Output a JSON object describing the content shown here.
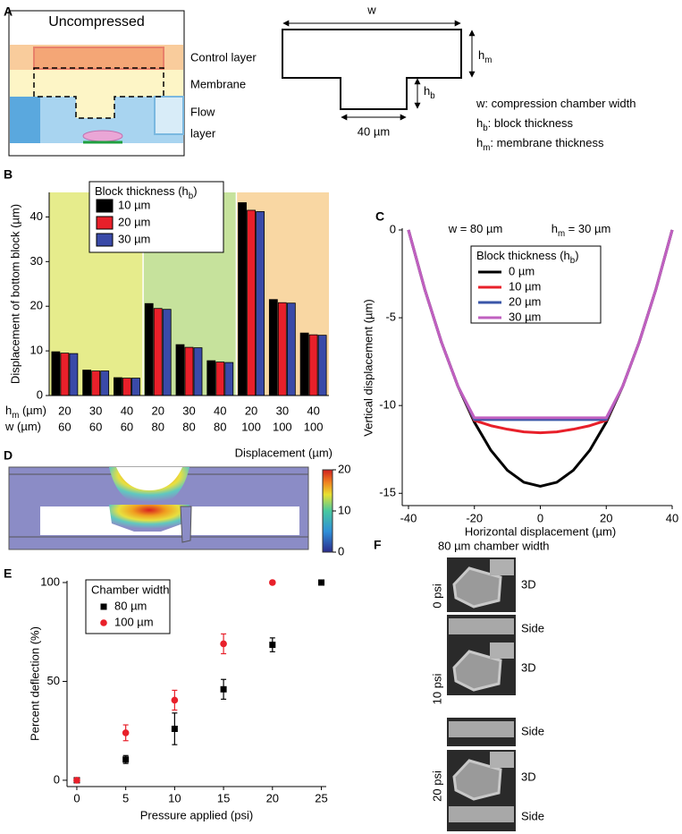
{
  "panel_letters": [
    "A",
    "B",
    "C",
    "D",
    "E",
    "F"
  ],
  "diagram_a": {
    "title": "Uncompressed",
    "layer_labels": [
      "Control layer",
      "Membrane",
      "Flow",
      "layer"
    ],
    "width_label": "w",
    "membrane_label": {
      "symbol": "h",
      "sub": "m"
    },
    "block_label": {
      "symbol": "h",
      "sub": "b"
    },
    "block_width_label": "40 µm",
    "key": [
      {
        "text": "w: compression chamber width"
      },
      {
        "symbol": "h",
        "sub": "b",
        "text": ": block thickness"
      },
      {
        "symbol": "h",
        "sub": "m",
        "text": ": membrane thickness"
      }
    ]
  },
  "chart_data": [
    {
      "type": "bar",
      "y_label": "Displacement of bottom block (µm)",
      "category_rows": [
        {
          "symbol": "h",
          "sub": "m",
          "text": " (µm)",
          "labels": [
            "20",
            "30",
            "40",
            "20",
            "30",
            "40",
            "20",
            "30",
            "40"
          ]
        },
        {
          "text": "w (µm)",
          "labels": [
            "60",
            "60",
            "60",
            "80",
            "80",
            "80",
            "100",
            "100",
            "100"
          ]
        }
      ],
      "legend_title": {
        "pre": "Block thickness (",
        "symbol": "h",
        "sub": "b",
        "text": ")"
      },
      "series": [
        {
          "name": "10 µm",
          "color": "#000000",
          "values": [
            9.8,
            5.7,
            4.0,
            20.6,
            11.4,
            7.8,
            43.2,
            21.5,
            14.0
          ]
        },
        {
          "name": "20 µm",
          "color": "#e8202a",
          "values": [
            9.5,
            5.5,
            3.9,
            19.5,
            10.8,
            7.5,
            41.5,
            20.8,
            13.6
          ]
        },
        {
          "name": "30 µm",
          "color": "#3a4aa8",
          "values": [
            9.4,
            5.5,
            3.9,
            19.3,
            10.7,
            7.4,
            41.2,
            20.7,
            13.5
          ]
        }
      ],
      "ylim": [
        0,
        45.5
      ],
      "yticks": [
        0,
        10,
        20,
        30,
        40
      ],
      "background_colors": [
        "#e6ec8c",
        "#c6e29c",
        "#f9d7a3"
      ]
    },
    {
      "type": "line",
      "title": [
        {
          "text": "w = 80 µm"
        },
        {
          "symbol": "h",
          "sub": "m",
          "text": " = 30 µm"
        }
      ],
      "x_label": "Horizontal displacement (µm)",
      "y_label": "Vertical displacement (µm)",
      "legend_title": {
        "pre": "Block thickness (",
        "symbol": "h",
        "sub": "b",
        "text": ")"
      },
      "x": [
        -40,
        -35,
        -30,
        -25,
        -20,
        -15,
        -10,
        -5,
        0,
        5,
        10,
        15,
        20,
        25,
        30,
        35,
        40
      ],
      "series": [
        {
          "name": "0 µm",
          "color": "#000000",
          "values": [
            0,
            -3.42,
            -6.39,
            -8.9,
            -10.95,
            -12.55,
            -13.69,
            -14.37,
            -14.6,
            -14.37,
            -13.69,
            -12.55,
            -10.95,
            -8.9,
            -6.39,
            -3.42,
            0
          ]
        },
        {
          "name": "10 µm",
          "color": "#e8202a",
          "values": [
            0,
            -3.42,
            -6.39,
            -8.9,
            -10.85,
            -11.15,
            -11.35,
            -11.5,
            -11.55,
            -11.5,
            -11.35,
            -11.15,
            -10.85,
            -8.9,
            -6.39,
            -3.42,
            0
          ]
        },
        {
          "name": "20 µm",
          "color": "#3a56a8",
          "values": [
            0,
            -3.42,
            -6.39,
            -8.9,
            -10.8,
            -10.8,
            -10.8,
            -10.8,
            -10.8,
            -10.8,
            -10.8,
            -10.8,
            -10.8,
            -8.9,
            -6.39,
            -3.42,
            0
          ]
        },
        {
          "name": "30 µm",
          "color": "#c060c0",
          "values": [
            0,
            -3.42,
            -6.39,
            -8.9,
            -10.7,
            -10.7,
            -10.7,
            -10.7,
            -10.7,
            -10.7,
            -10.7,
            -10.7,
            -10.7,
            -8.9,
            -6.39,
            -3.42,
            0
          ]
        }
      ],
      "xlim": [
        -40,
        40
      ],
      "xticks": [
        -40,
        -20,
        0,
        20,
        40
      ],
      "ylim": [
        -15.7,
        0
      ],
      "yticks": [
        -15,
        -10,
        -5,
        0
      ]
    },
    {
      "type": "scatter",
      "x_label": "Pressure applied (psi)",
      "y_label": "Percent deflection (%)",
      "legend_title": "Chamber width",
      "series": [
        {
          "name": "80 µm",
          "color": "#000000",
          "marker": "square",
          "x": [
            0,
            5,
            10,
            15,
            20,
            25
          ],
          "values": [
            0,
            10.5,
            26,
            46,
            68.5,
            100
          ],
          "errors": [
            null,
            2,
            8,
            5,
            3.5,
            null
          ]
        },
        {
          "name": "100 µm",
          "color": "#e8202a",
          "marker": "circle",
          "x": [
            0,
            5,
            10,
            15,
            20
          ],
          "values": [
            0,
            24,
            40.5,
            69,
            100
          ],
          "errors": [
            null,
            4,
            5,
            5,
            null
          ]
        }
      ],
      "xlim": [
        -1,
        25.5
      ],
      "xticks": [
        0,
        5,
        10,
        15,
        20,
        25
      ],
      "ylim": [
        -3.2,
        100.9
      ],
      "yticks": [
        0,
        50,
        100
      ]
    }
  ],
  "simulation_d": {
    "colorbar_label": "Displacement (µm)",
    "colorbar_range": [
      0,
      20
    ],
    "colorbar_ticks": [
      0,
      10,
      20
    ]
  },
  "images_f": {
    "title": "80 µm chamber width",
    "rows": [
      {
        "pressure": "0 psi",
        "views": [
          "3D",
          "Side"
        ]
      },
      {
        "pressure": "10 psi",
        "views": [
          "3D",
          "Side"
        ]
      },
      {
        "pressure": "20 psi",
        "views": [
          "3D",
          "Side"
        ]
      }
    ]
  }
}
